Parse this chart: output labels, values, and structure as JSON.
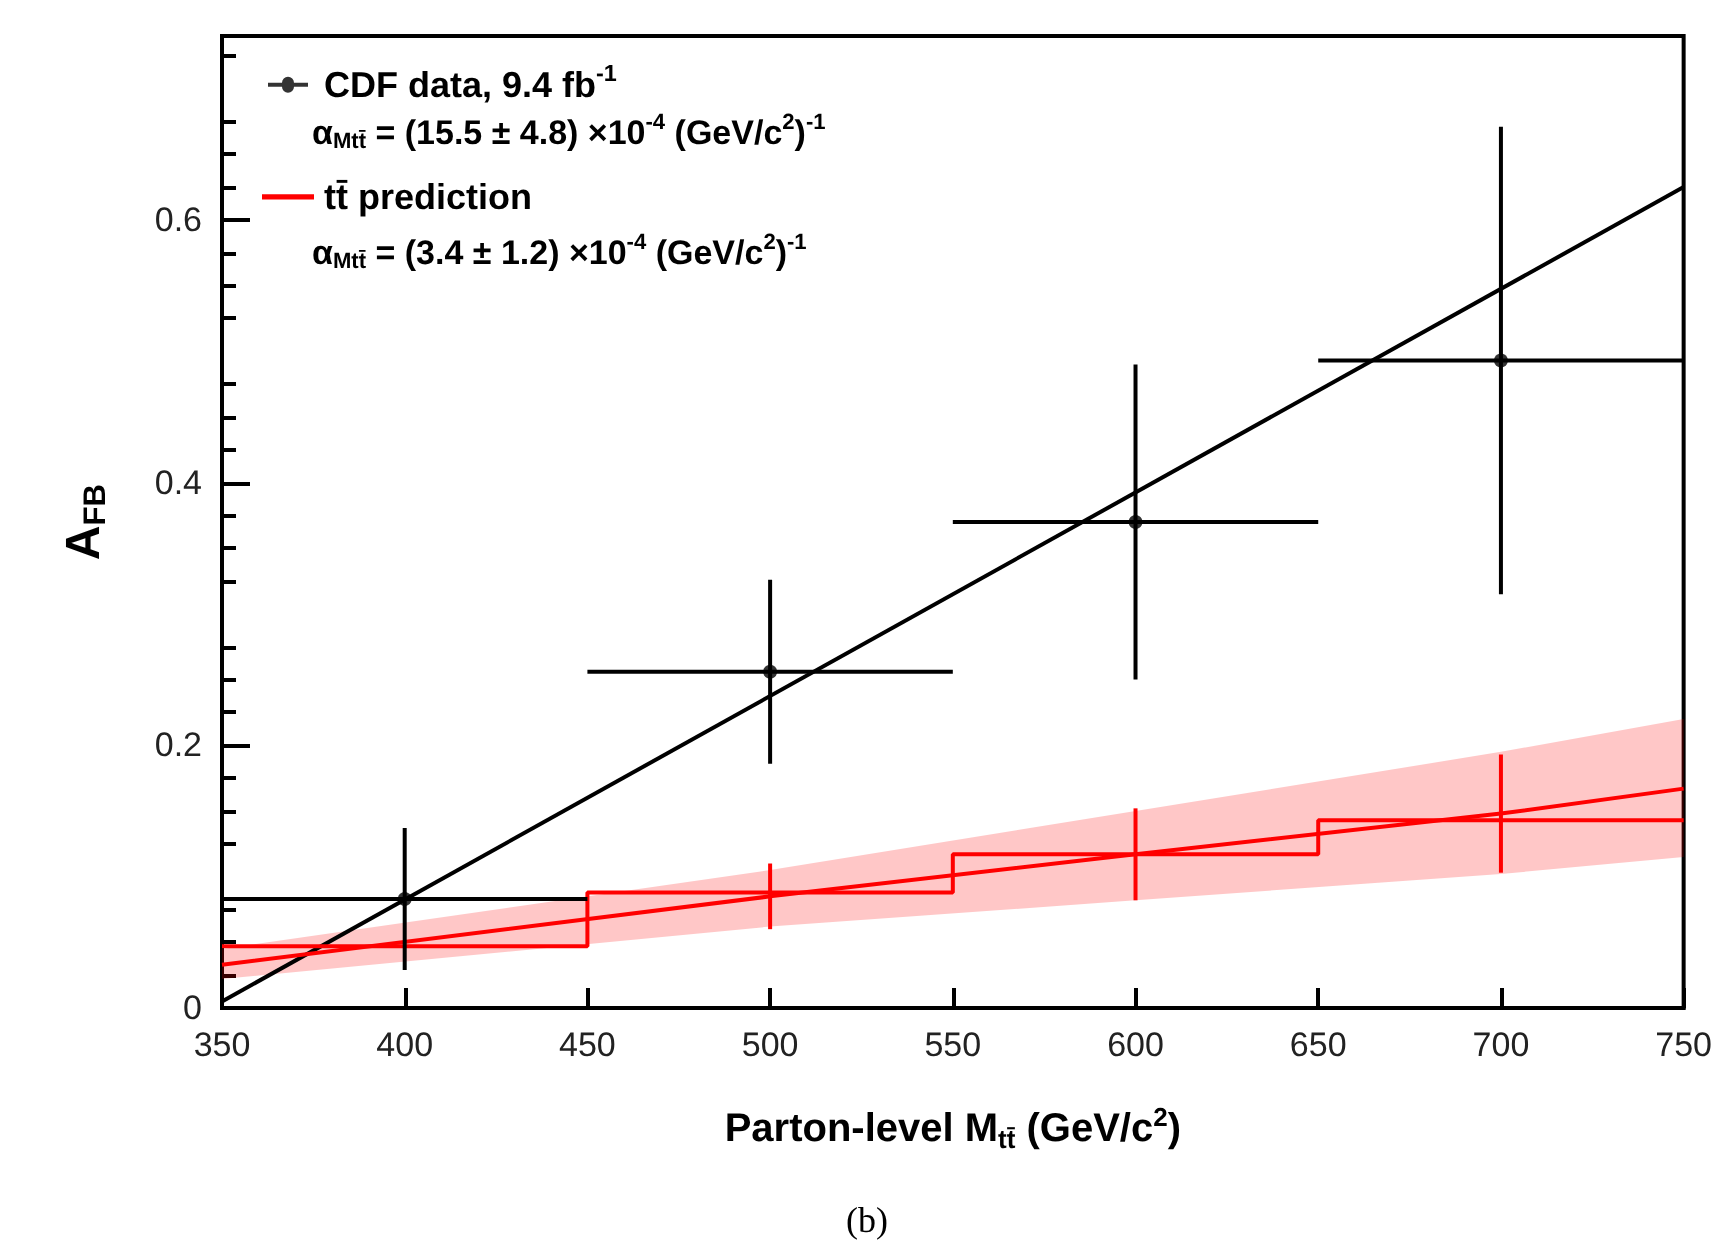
{
  "chart_data": {
    "type": "scatter",
    "xlabel": "Parton-level M$_{tt̄}$ (GeV/c$^{2}$)",
    "ylabel": "A$_{FB}$",
    "xlim": [
      350,
      750
    ],
    "xticks": [
      350,
      400,
      450,
      500,
      550,
      600,
      650,
      700,
      750
    ],
    "ylim": [
      0,
      0.74
    ],
    "yticks": [
      0,
      0.2,
      0.4,
      0.6
    ],
    "grid": false,
    "legend": "top left",
    "series": [
      {
        "type": "line",
        "color": "#000000",
        "marker": "none",
        "x": [
          350,
          750
        ],
        "values": [
          0.005,
          0.625
        ]
      },
      {
        "type": "line",
        "name": "tt̄ prediction",
        "color": "#ff0000",
        "marker": "none",
        "x": [
          350,
          500,
          600,
          700,
          750
        ],
        "values": [
          0.033,
          0.085,
          0.117,
          0.148,
          0.167
        ],
        "errors": [
          null,
          0.025,
          0.035,
          0.045,
          null
        ],
        "lower": [
          0.022,
          0.062,
          0.082,
          0.102,
          0.115
        ],
        "upper": [
          0.045,
          0.105,
          0.15,
          0.195,
          0.22
        ]
      },
      {
        "type": "step",
        "color": "#ff0000",
        "marker": "none",
        "x": [
          350,
          450,
          550,
          650,
          750
        ],
        "values": [
          0.047,
          0.088,
          0.117,
          0.143,
          0.143
        ]
      },
      {
        "name": "CDF data, 9.4 fb$^{-1}$",
        "color": "#000000",
        "marker": "circle",
        "x": [
          400,
          500,
          600,
          700
        ],
        "values": [
          0.083,
          0.256,
          0.37,
          0.493
        ],
        "errors": [
          0.054,
          0.07,
          0.12,
          0.178
        ],
        "xerrors": [
          50,
          50,
          50,
          50
        ]
      }
    ],
    "annotations": [
      "α$_{Mtt̄}$ = (15.5 ± 4.8) ×10$^{-4}$ (GeV/c$^{2}$)$^{-1}$",
      "α$_{Mtt̄}$ = (3.4 ± 1.2) ×10$^{-4}$ (GeV/c$^{2}$)$^{-1}$",
      "(b)"
    ]
  }
}
